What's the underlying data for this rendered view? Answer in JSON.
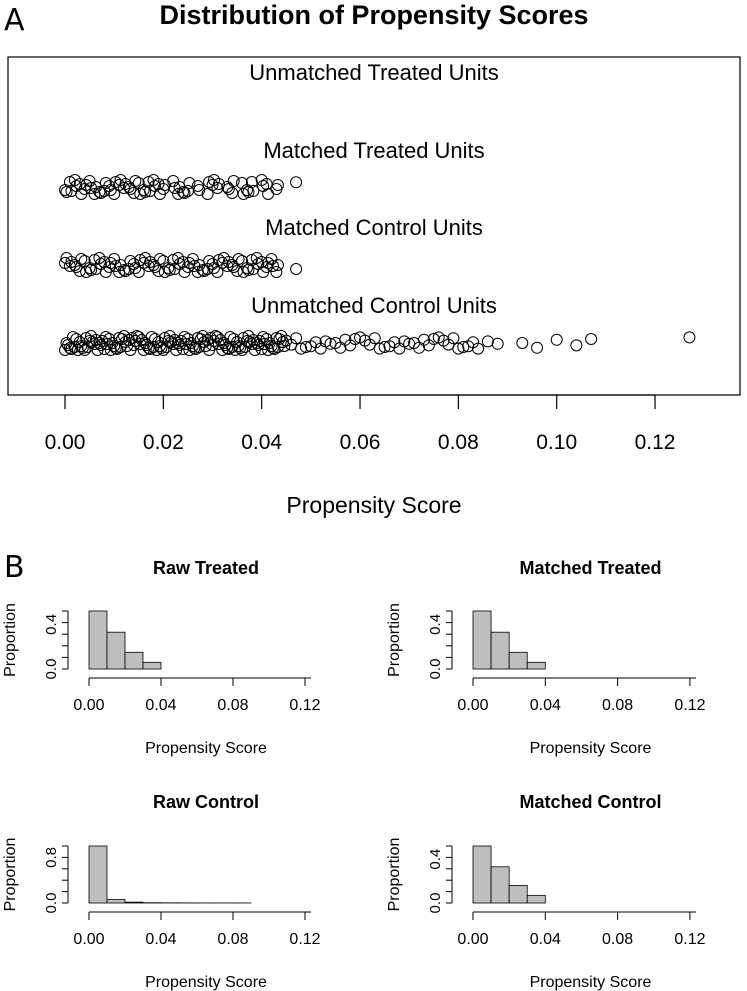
{
  "panel_a_label": "A",
  "panel_b_label": "B",
  "chart_data": [
    {
      "type": "scatter",
      "title": "Distribution of Propensity Scores",
      "xlabel": "Propensity Score",
      "xlim": [
        0.0,
        0.13
      ],
      "xticks": [
        "0.00",
        "0.02",
        "0.04",
        "0.06",
        "0.08",
        "0.10",
        "0.12"
      ],
      "tick_values": [
        0.0,
        0.02,
        0.04,
        0.06,
        0.08,
        0.1,
        0.12
      ],
      "groups": [
        {
          "name": "Unmatched Treated Units",
          "values": []
        },
        {
          "name": "Matched Treated Units",
          "values": [
            0.0,
            0.001,
            0.002,
            0.003,
            0.004,
            0.005,
            0.006,
            0.007,
            0.008,
            0.009,
            0.01,
            0.011,
            0.012,
            0.013,
            0.014,
            0.015,
            0.016,
            0.017,
            0.018,
            0.019,
            0.02,
            0.022,
            0.023,
            0.024,
            0.025,
            0.027,
            0.029,
            0.03,
            0.031,
            0.033,
            0.034,
            0.036,
            0.037,
            0.038,
            0.04,
            0.041,
            0.043,
            0.047
          ]
        },
        {
          "name": "Matched Control Units",
          "values": [
            0.0,
            0.001,
            0.002,
            0.003,
            0.004,
            0.005,
            0.006,
            0.007,
            0.008,
            0.009,
            0.01,
            0.011,
            0.012,
            0.013,
            0.014,
            0.015,
            0.016,
            0.017,
            0.018,
            0.019,
            0.02,
            0.021,
            0.022,
            0.023,
            0.024,
            0.025,
            0.026,
            0.027,
            0.028,
            0.029,
            0.03,
            0.031,
            0.032,
            0.033,
            0.034,
            0.035,
            0.036,
            0.037,
            0.038,
            0.039,
            0.04,
            0.041,
            0.042,
            0.043,
            0.047
          ]
        },
        {
          "name": "Unmatched Control Units",
          "values": [
            0.0,
            0.001,
            0.002,
            0.003,
            0.004,
            0.005,
            0.006,
            0.007,
            0.008,
            0.009,
            0.01,
            0.011,
            0.012,
            0.013,
            0.014,
            0.015,
            0.016,
            0.017,
            0.018,
            0.019,
            0.02,
            0.021,
            0.022,
            0.023,
            0.024,
            0.025,
            0.026,
            0.027,
            0.028,
            0.029,
            0.03,
            0.031,
            0.032,
            0.033,
            0.034,
            0.035,
            0.036,
            0.037,
            0.038,
            0.039,
            0.04,
            0.041,
            0.042,
            0.043,
            0.044,
            0.045,
            0.046,
            0.047,
            0.048,
            0.049,
            0.05,
            0.051,
            0.052,
            0.053,
            0.054,
            0.055,
            0.056,
            0.057,
            0.058,
            0.059,
            0.06,
            0.061,
            0.062,
            0.063,
            0.064,
            0.065,
            0.066,
            0.067,
            0.068,
            0.069,
            0.07,
            0.071,
            0.072,
            0.073,
            0.074,
            0.075,
            0.076,
            0.077,
            0.078,
            0.079,
            0.08,
            0.081,
            0.082,
            0.083,
            0.084,
            0.086,
            0.088,
            0.093,
            0.096,
            0.1,
            0.104,
            0.107,
            0.127
          ]
        }
      ]
    },
    {
      "type": "bar",
      "title": "Raw Treated",
      "xlabel": "Propensity Score",
      "ylabel": "Proportion",
      "bin_edges": [
        0.0,
        0.01,
        0.02,
        0.03,
        0.04,
        0.05,
        0.06,
        0.07,
        0.08,
        0.09,
        0.1,
        0.11,
        0.12,
        0.13
      ],
      "values": [
        0.52,
        0.33,
        0.15,
        0.06,
        0.0,
        0.0,
        0.0,
        0.0,
        0.0,
        0.0,
        0.0,
        0.0,
        0.0
      ],
      "xticks": [
        "0.00",
        "0.04",
        "0.08",
        "0.12"
      ],
      "yticks": [
        "0.0",
        "0.4"
      ],
      "ylim": [
        0,
        0.52
      ]
    },
    {
      "type": "bar",
      "title": "Matched Treated",
      "xlabel": "Propensity Score",
      "ylabel": "Proportion",
      "bin_edges": [
        0.0,
        0.01,
        0.02,
        0.03,
        0.04,
        0.05,
        0.06,
        0.07,
        0.08,
        0.09,
        0.1,
        0.11,
        0.12,
        0.13
      ],
      "values": [
        0.52,
        0.33,
        0.15,
        0.06,
        0.0,
        0.0,
        0.0,
        0.0,
        0.0,
        0.0,
        0.0,
        0.0,
        0.0
      ],
      "xticks": [
        "0.00",
        "0.04",
        "0.08",
        "0.12"
      ],
      "yticks": [
        "0.0",
        "0.4"
      ],
      "ylim": [
        0,
        0.52
      ]
    },
    {
      "type": "bar",
      "title": "Raw Control",
      "xlabel": "Propensity Score",
      "ylabel": "Proportion",
      "bin_edges": [
        0.0,
        0.01,
        0.02,
        0.03,
        0.04,
        0.05,
        0.06,
        0.07,
        0.08,
        0.09,
        0.1,
        0.11,
        0.12,
        0.13
      ],
      "values": [
        1.0,
        0.06,
        0.015,
        0.005,
        0.003,
        0.002,
        0.001,
        0.001,
        0.001,
        0.0,
        0.0,
        0.0,
        0.0
      ],
      "xticks": [
        "0.00",
        "0.04",
        "0.08",
        "0.12"
      ],
      "yticks": [
        "0.0",
        "0.8"
      ],
      "ylim": [
        0,
        1.0
      ]
    },
    {
      "type": "bar",
      "title": "Matched Control",
      "xlabel": "Propensity Score",
      "ylabel": "Proportion",
      "bin_edges": [
        0.0,
        0.01,
        0.02,
        0.03,
        0.04,
        0.05,
        0.06,
        0.07,
        0.08,
        0.09,
        0.1,
        0.11,
        0.12,
        0.13
      ],
      "values": [
        0.52,
        0.33,
        0.16,
        0.07,
        0.0,
        0.0,
        0.0,
        0.0,
        0.0,
        0.0,
        0.0,
        0.0,
        0.0
      ],
      "xticks": [
        "0.00",
        "0.04",
        "0.08",
        "0.12"
      ],
      "yticks": [
        "0.0",
        "0.4"
      ],
      "ylim": [
        0,
        0.52
      ]
    }
  ]
}
